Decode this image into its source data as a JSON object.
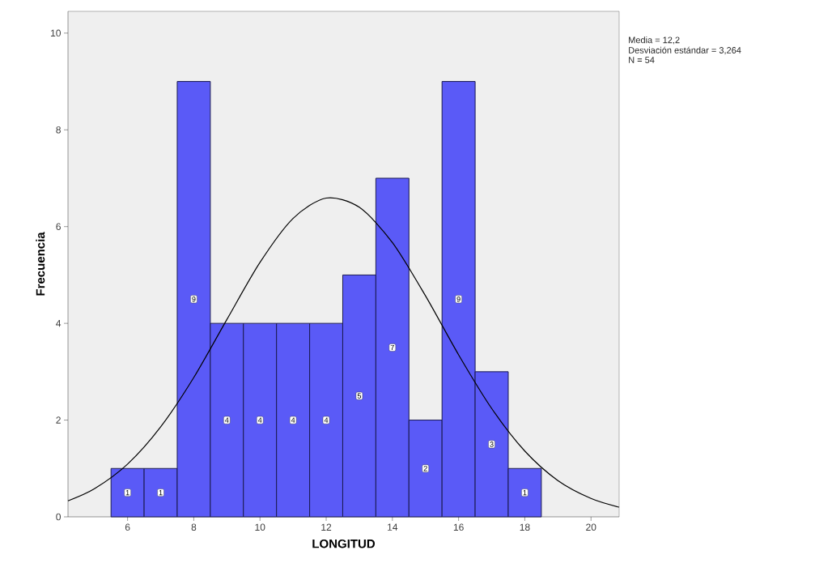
{
  "chart_data": {
    "type": "histogram",
    "xlabel": "LONGITUD",
    "ylabel": "Frecuencia",
    "bins": [
      5.5,
      6.5,
      7.5,
      8.5,
      9.5,
      10.5,
      11.5,
      12.5,
      13.5,
      14.5,
      15.5,
      16.5,
      17.5,
      18.5
    ],
    "values": [
      1,
      1,
      9,
      4,
      4,
      4,
      4,
      5,
      7,
      2,
      9,
      3,
      1
    ],
    "color": "#5a5af7",
    "value_labels": [
      "1",
      "1",
      "9",
      "4",
      "4",
      "4",
      "4",
      "5",
      "7",
      "2",
      "9",
      "3",
      "1"
    ],
    "series": [
      {
        "type": "line",
        "color": "#000000",
        "x": [
          4.2,
          5,
          6,
          7,
          8,
          9,
          10,
          11,
          12,
          13,
          14,
          15,
          16,
          17,
          18,
          19,
          20,
          20.85
        ],
        "values": [
          0.33,
          0.58,
          1.09,
          1.86,
          2.88,
          4.08,
          5.26,
          6.17,
          6.59,
          6.4,
          5.67,
          4.57,
          3.35,
          2.24,
          1.36,
          0.75,
          0.38,
          0.2
        ]
      }
    ],
    "xlim": [
      4.2,
      20.85
    ],
    "ylim": [
      0,
      10.45
    ],
    "xticks": [
      6,
      8,
      10,
      12,
      14,
      16,
      18,
      20
    ],
    "yticks": [
      0,
      2,
      4,
      6,
      8,
      10
    ],
    "grid": false,
    "annotations": [
      "Media = 12,2",
      "Desviación estándar = 3,264",
      "N = 54"
    ]
  }
}
